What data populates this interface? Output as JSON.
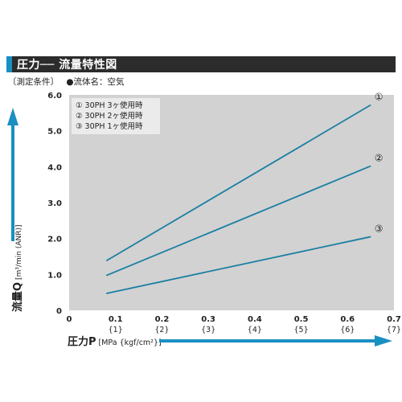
{
  "header": {
    "title": "圧力── 流量特性図"
  },
  "conditions": {
    "label": "〔測定条件〕",
    "fluid": "●流体名：空気"
  },
  "legend": [
    "① 30PH  3ヶ使用時",
    "② 30PH  2ヶ使用時",
    "③ 30PH  1ヶ使用時"
  ],
  "colors": {
    "line": "#1a7fa3",
    "plot_bg": "#d2d2d2",
    "header_bg": "#2c2c2c",
    "accent": "#1a8fc2",
    "arrow": "#1a8fc2"
  },
  "chart_data": {
    "type": "line",
    "ylabel": "流量Q",
    "ylabel_unit": "[m³/min (ANR)]",
    "xlabel": "圧力P",
    "xlabel_unit": "[MPa {kgf/cm²}]",
    "xlim": [
      0,
      0.7
    ],
    "ylim": [
      0,
      6.0
    ],
    "xticks": [
      "0",
      "0.1",
      "0.2",
      "0.3",
      "0.4",
      "0.5",
      "0.6",
      "0.7"
    ],
    "xticks_secondary": [
      "",
      "{1}",
      "{2}",
      "{3}",
      "{4}",
      "{5}",
      "{6}",
      "{7}"
    ],
    "yticks": [
      "0",
      "1.0",
      "2.0",
      "3.0",
      "4.0",
      "5.0",
      "6.0"
    ],
    "grid": false,
    "series": [
      {
        "name": "①",
        "x": [
          0.08,
          0.65
        ],
        "y": [
          1.38,
          5.72
        ]
      },
      {
        "name": "②",
        "x": [
          0.08,
          0.65
        ],
        "y": [
          0.97,
          4.02
        ]
      },
      {
        "name": "③",
        "x": [
          0.08,
          0.65
        ],
        "y": [
          0.47,
          2.05
        ]
      }
    ]
  }
}
